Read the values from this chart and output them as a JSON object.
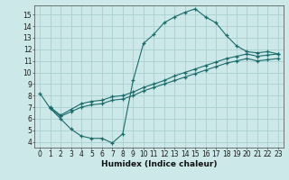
{
  "xlabel": "Humidex (Indice chaleur)",
  "background_color": "#cce8e8",
  "grid_color": "#aacfcf",
  "line_color": "#1a6b6b",
  "xlim": [
    -0.5,
    23.5
  ],
  "ylim": [
    3.5,
    15.8
  ],
  "yticks": [
    4,
    5,
    6,
    7,
    8,
    9,
    10,
    11,
    12,
    13,
    14,
    15
  ],
  "xticks": [
    0,
    1,
    2,
    3,
    4,
    5,
    6,
    7,
    8,
    9,
    10,
    11,
    12,
    13,
    14,
    15,
    16,
    17,
    18,
    19,
    20,
    21,
    22,
    23
  ],
  "line1_x": [
    0,
    1,
    2,
    3,
    4,
    5,
    6,
    7,
    8,
    9,
    10,
    11,
    12,
    13,
    14,
    15,
    16,
    17,
    18,
    19,
    20,
    21,
    22,
    23
  ],
  "line1_y": [
    8.2,
    6.9,
    6.0,
    5.1,
    4.5,
    4.3,
    4.3,
    3.9,
    4.7,
    9.3,
    12.5,
    13.3,
    14.3,
    14.8,
    15.2,
    15.5,
    14.8,
    14.3,
    13.2,
    12.3,
    11.8,
    11.7,
    11.8,
    11.6
  ],
  "line2_x": [
    1,
    2,
    3,
    4,
    5,
    6,
    7,
    8,
    9,
    10,
    11,
    12,
    13,
    14,
    15,
    16,
    17,
    18,
    19,
    20,
    21,
    22,
    23
  ],
  "line2_y": [
    7.0,
    6.3,
    6.8,
    7.3,
    7.5,
    7.6,
    7.9,
    8.0,
    8.3,
    8.7,
    9.0,
    9.3,
    9.7,
    10.0,
    10.3,
    10.6,
    10.9,
    11.2,
    11.4,
    11.6,
    11.4,
    11.5,
    11.6
  ],
  "line3_x": [
    1,
    2,
    3,
    4,
    5,
    6,
    7,
    8,
    9,
    10,
    11,
    12,
    13,
    14,
    15,
    16,
    17,
    18,
    19,
    20,
    21,
    22,
    23
  ],
  "line3_y": [
    6.9,
    6.2,
    6.6,
    7.0,
    7.2,
    7.3,
    7.6,
    7.7,
    8.0,
    8.4,
    8.7,
    9.0,
    9.3,
    9.6,
    9.9,
    10.2,
    10.5,
    10.8,
    11.0,
    11.2,
    11.0,
    11.1,
    11.2
  ],
  "tick_fontsize": 5.5,
  "xlabel_fontsize": 6.5
}
